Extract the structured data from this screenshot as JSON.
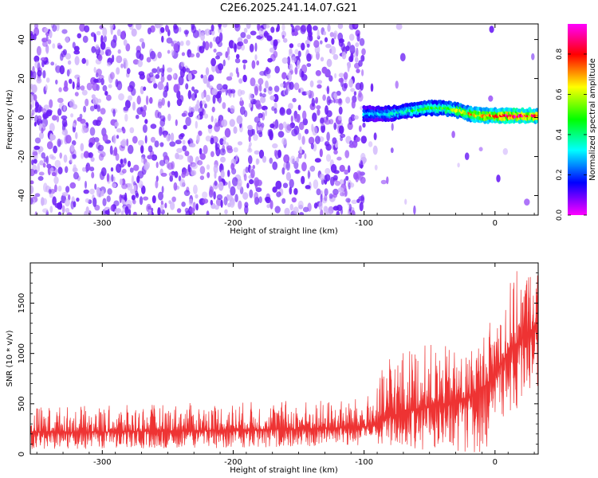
{
  "title": "C2E6.2025.241.14.07.G21",
  "chart_data": [
    {
      "type": "heatmap",
      "xlabel": "Height of straight line (km)",
      "ylabel": "Frequency (Hz)",
      "xlim": [
        -355,
        33
      ],
      "ylim": [
        -50,
        48
      ],
      "x_ticks": [
        -300,
        -200,
        -100,
        0
      ],
      "y_ticks": [
        -40,
        -20,
        0,
        20,
        40
      ],
      "colorbar": {
        "label": "Normalized spectral amplitude",
        "range": [
          0.0,
          0.95
        ],
        "ticks": [
          0.0,
          0.2,
          0.4,
          0.6,
          0.8
        ],
        "colormap": [
          "#ff00ff",
          "#0000ff",
          "#00ffff",
          "#00ff00",
          "#ffff00",
          "#ff0000",
          "#ff00ff"
        ]
      },
      "features": {
        "noise_region": {
          "x_range": [
            -355,
            -100
          ],
          "amplitude_range": [
            0.0,
            0.1
          ]
        },
        "signal_trace": {
          "x": [
            -100,
            -90,
            -80,
            -70,
            -60,
            -50,
            -40,
            -30,
            -20,
            -10,
            0,
            10,
            20,
            30
          ],
          "frequency": [
            2,
            2,
            2,
            3,
            4,
            5,
            5,
            4,
            2,
            1,
            1,
            1,
            1,
            1
          ],
          "amplitude": [
            0.3,
            0.3,
            0.35,
            0.4,
            0.45,
            0.5,
            0.5,
            0.6,
            0.7,
            0.75,
            0.85,
            0.9,
            0.9,
            0.85
          ]
        }
      }
    },
    {
      "type": "line",
      "xlabel": "Height of straight line (km)",
      "ylabel": "SNR (10 * v/v)",
      "xlim": [
        -355,
        33
      ],
      "ylim": [
        0,
        1900
      ],
      "x_ticks": [
        -300,
        -200,
        -100,
        0
      ],
      "y_ticks": [
        0,
        500,
        1000,
        1500
      ],
      "color": "#ee3333",
      "series": [
        {
          "x": [
            -355,
            -300,
            -250,
            -200,
            -150,
            -120,
            -100,
            -90,
            -80,
            -70,
            -60,
            -50,
            -40,
            -30,
            -20,
            -10,
            0,
            10,
            20,
            33
          ],
          "mean": [
            220,
            220,
            230,
            240,
            250,
            260,
            270,
            300,
            380,
            420,
            450,
            480,
            500,
            520,
            560,
            650,
            800,
            1000,
            1150,
            1300
          ],
          "peak": [
            480,
            480,
            500,
            520,
            540,
            540,
            560,
            700,
            1080,
            1050,
            1100,
            1100,
            1080,
            1050,
            1050,
            1200,
            1450,
            1700,
            1890,
            1850
          ],
          "trough": [
            50,
            50,
            60,
            60,
            70,
            70,
            80,
            90,
            60,
            80,
            50,
            40,
            30,
            30,
            10,
            10,
            150,
            350,
            500,
            600
          ]
        }
      ]
    }
  ]
}
